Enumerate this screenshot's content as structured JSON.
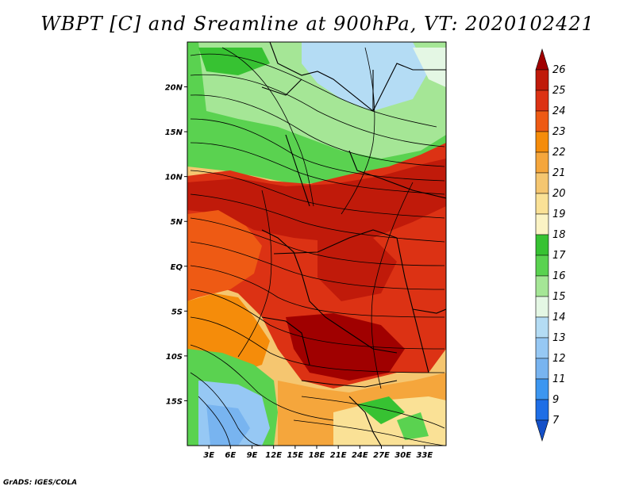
{
  "title": "WBPT [C] and Sreamline at 900hPa, VT: 2020102421",
  "footer": "GrADS: IGES/COLA",
  "map": {
    "lon_range": [
      0,
      36
    ],
    "lat_range": [
      -20,
      25
    ],
    "lon_labels": [
      "3E",
      "6E",
      "9E",
      "12E",
      "15E",
      "18E",
      "21E",
      "24E",
      "27E",
      "30E",
      "33E"
    ],
    "lat_labels": [
      "20N",
      "15N",
      "10N",
      "5N",
      "EQ",
      "5S",
      "10S",
      "15S"
    ]
  },
  "colorbar": {
    "labels": [
      "26",
      "25",
      "24",
      "23",
      "22",
      "21",
      "20",
      "19",
      "18",
      "17",
      "16",
      "15",
      "14",
      "13",
      "12",
      "11",
      "9",
      "7"
    ],
    "colors": [
      "#a00000",
      "#c01a0a",
      "#dc3214",
      "#ee5a14",
      "#f58c0a",
      "#f5a63c",
      "#f5c670",
      "#fae196",
      "#fbf3c4",
      "#37c232",
      "#5ad250",
      "#a5e696",
      "#e4f7e4",
      "#b4dcf4",
      "#96c8f4",
      "#78b4f0",
      "#3c96f0",
      "#1e6ee6",
      "#1450c8"
    ]
  }
}
